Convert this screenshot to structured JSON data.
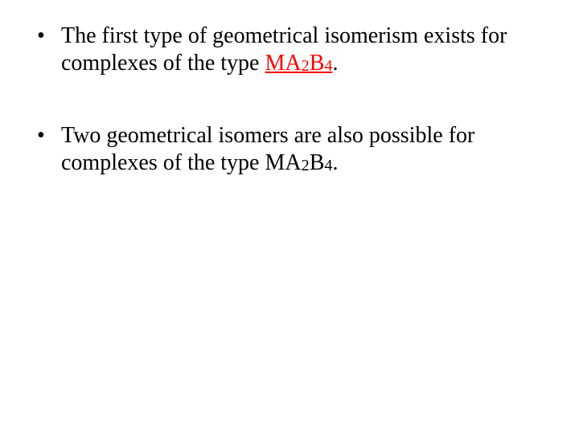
{
  "type": "slide",
  "background_color": "#ffffff",
  "text_color": "#000000",
  "accent_color": "#ff0000",
  "font_family": "Garamond",
  "body_fontsize_pt": 28,
  "sub_fontsize_ratio": 0.72,
  "bullets": [
    {
      "pre": "The first type of geometrical isomerism exists for complexes of the type ",
      "formula_style": "red-underline",
      "formula": {
        "M": "MA",
        "a_sub": "2",
        "B": "B",
        "b_sub": "4"
      },
      "post": "."
    },
    {
      "pre": "Two geometrical isomers are also possible for complexes of the type ",
      "formula_style": "plain",
      "formula": {
        "M": "MA",
        "a_sub": "2",
        "B": "B",
        "b_sub": "4"
      },
      "post": "."
    }
  ]
}
